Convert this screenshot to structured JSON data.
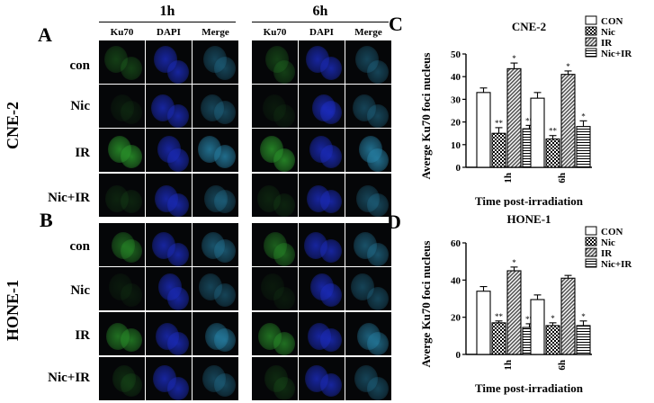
{
  "panel_labels": {
    "A": "A",
    "B": "B",
    "C": "C",
    "D": "D"
  },
  "cell_lines": [
    "CNE-2",
    "HONE-1"
  ],
  "timepoints": [
    "1h",
    "6h"
  ],
  "channels": [
    "Ku70",
    "DAPI",
    "Merge",
    "Ku70",
    "DAPI",
    "Merge"
  ],
  "row_labels": [
    "con",
    "Nic",
    "IR",
    "Nic+IR"
  ],
  "colors": {
    "ku70": "#2fa82f",
    "dapi": "#1d2fd0",
    "merge": "#2a8fb8",
    "background": "#050608"
  },
  "chart_data": [
    {
      "type": "bar",
      "title": "CNE-2",
      "categories": [
        "1h",
        "6h"
      ],
      "ylabel": "Averge Ku70 foci nucleus",
      "xlabel": "Time post-irradiation",
      "ylim": [
        0,
        50
      ],
      "yticks": [
        0,
        10,
        20,
        30,
        40,
        50
      ],
      "legend_position": "top-right",
      "series": [
        {
          "name": "CON",
          "values": [
            33,
            30.5
          ],
          "errors": [
            2,
            2.5
          ],
          "marks": [
            "",
            ""
          ],
          "pattern": "white"
        },
        {
          "name": "Nic",
          "values": [
            15,
            12.5
          ],
          "errors": [
            2.5,
            1.5
          ],
          "marks": [
            "**",
            "**"
          ],
          "pattern": "checker"
        },
        {
          "name": "IR",
          "values": [
            43.5,
            41
          ],
          "errors": [
            2.5,
            1.5
          ],
          "marks": [
            "*",
            "*"
          ],
          "pattern": "diagonal"
        },
        {
          "name": "Nic+IR",
          "values": [
            17,
            18
          ],
          "errors": [
            1.5,
            2.5
          ],
          "marks": [
            "**",
            "*"
          ],
          "pattern": "horizontal"
        }
      ]
    },
    {
      "type": "bar",
      "title": "HONE-1",
      "categories": [
        "1h",
        "6h"
      ],
      "ylabel": "Averge Ku70 foci nucleus",
      "xlabel": "Time post-irradiation",
      "ylim": [
        0,
        60
      ],
      "yticks": [
        0,
        20,
        40,
        60
      ],
      "legend_position": "top-right",
      "series": [
        {
          "name": "CON",
          "values": [
            34,
            29.5
          ],
          "errors": [
            2.5,
            2.5
          ],
          "marks": [
            "",
            ""
          ],
          "pattern": "white"
        },
        {
          "name": "Nic",
          "values": [
            17,
            15.5
          ],
          "errors": [
            1,
            1.5
          ],
          "marks": [
            "**",
            "*"
          ],
          "pattern": "checker"
        },
        {
          "name": "IR",
          "values": [
            45,
            41
          ],
          "errors": [
            2,
            1.5
          ],
          "marks": [
            "*",
            ""
          ],
          "pattern": "diagonal"
        },
        {
          "name": "Nic+IR",
          "values": [
            14.5,
            15.5
          ],
          "errors": [
            2,
            2.5
          ],
          "marks": [
            "**",
            "*"
          ],
          "pattern": "horizontal"
        }
      ]
    }
  ]
}
